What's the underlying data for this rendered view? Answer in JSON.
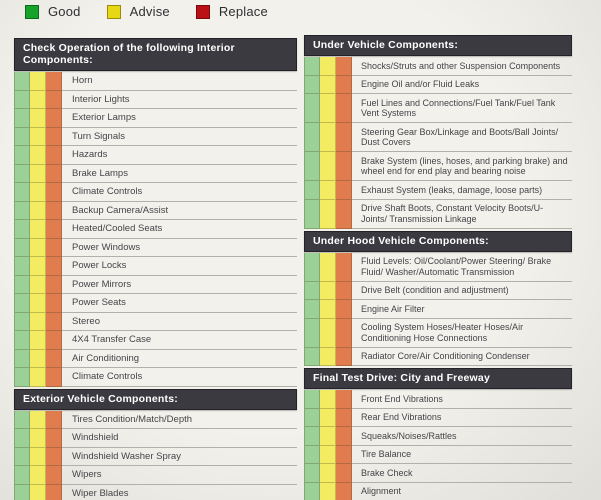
{
  "legend": {
    "items": [
      {
        "key": "good",
        "label": "Good",
        "color": "#17a22c"
      },
      {
        "key": "advise",
        "label": "Advise",
        "color": "#e8d713"
      },
      {
        "key": "replace",
        "label": "Replace",
        "color": "#bb1016"
      }
    ]
  },
  "status_options": [
    "good",
    "advise",
    "replace"
  ],
  "colors": {
    "stripe_good": "#9bd096",
    "stripe_advise": "#f3eb61",
    "stripe_replace": "#e07c4e",
    "header_bg": "#3b3a41",
    "header_text": "#ffffff",
    "line": "#b2b0ab",
    "label_text": "#454449"
  },
  "columns": [
    {
      "sections": [
        {
          "header": "Check Operation of the following Interior Components:",
          "items": [
            "Horn",
            "Interior Lights",
            "Exterior Lamps",
            "Turn Signals",
            "Hazards",
            "Brake Lamps",
            "Climate Controls",
            "Backup Camera/Assist",
            "Heated/Cooled Seats",
            "Power Windows",
            "Power Locks",
            "Power Mirrors",
            "Power Seats",
            "Stereo",
            "4X4 Transfer Case",
            "Air Conditioning",
            "Climate Controls"
          ]
        },
        {
          "header": "Exterior Vehicle Components:",
          "items": [
            "Tires Condition/Match/Depth",
            "Windshield",
            "Windshield Washer Spray",
            "Wipers",
            "Wiper Blades"
          ]
        }
      ]
    },
    {
      "sections": [
        {
          "header": "Under Vehicle Components:",
          "items": [
            "Shocks/Struts and other Suspension Components",
            "Engine Oil and/or Fluid Leaks",
            "Fuel Lines and Connections/Fuel Tank/Fuel Tank Vent Systems",
            "Steering Gear Box/Linkage and Boots/Ball Joints/ Dust Covers",
            "Brake System (lines, hoses, and parking brake) and wheel end for end play and bearing noise",
            "Exhaust System (leaks, damage, loose parts)",
            "Drive Shaft Boots, Constant Velocity Boots/U-Joints/ Transmission Linkage"
          ]
        },
        {
          "header": "Under Hood Vehicle Components:",
          "items": [
            "Fluid Levels: Oil/Coolant/Power Steering/ Brake Fluid/ Washer/Automatic Transmission",
            "Drive Belt (condition and adjustment)",
            "Engine Air Filter",
            "Cooling System Hoses/Heater Hoses/Air Conditioning Hose Connections",
            "Radiator Core/Air Conditioning Condenser"
          ]
        },
        {
          "header": "Final Test Drive: City and Freeway",
          "items": [
            "Front End Vibrations",
            "Rear End Vibrations",
            "Squeaks/Noises/Rattles",
            "Tire Balance",
            "Brake Check",
            "Alignment"
          ]
        }
      ]
    }
  ]
}
